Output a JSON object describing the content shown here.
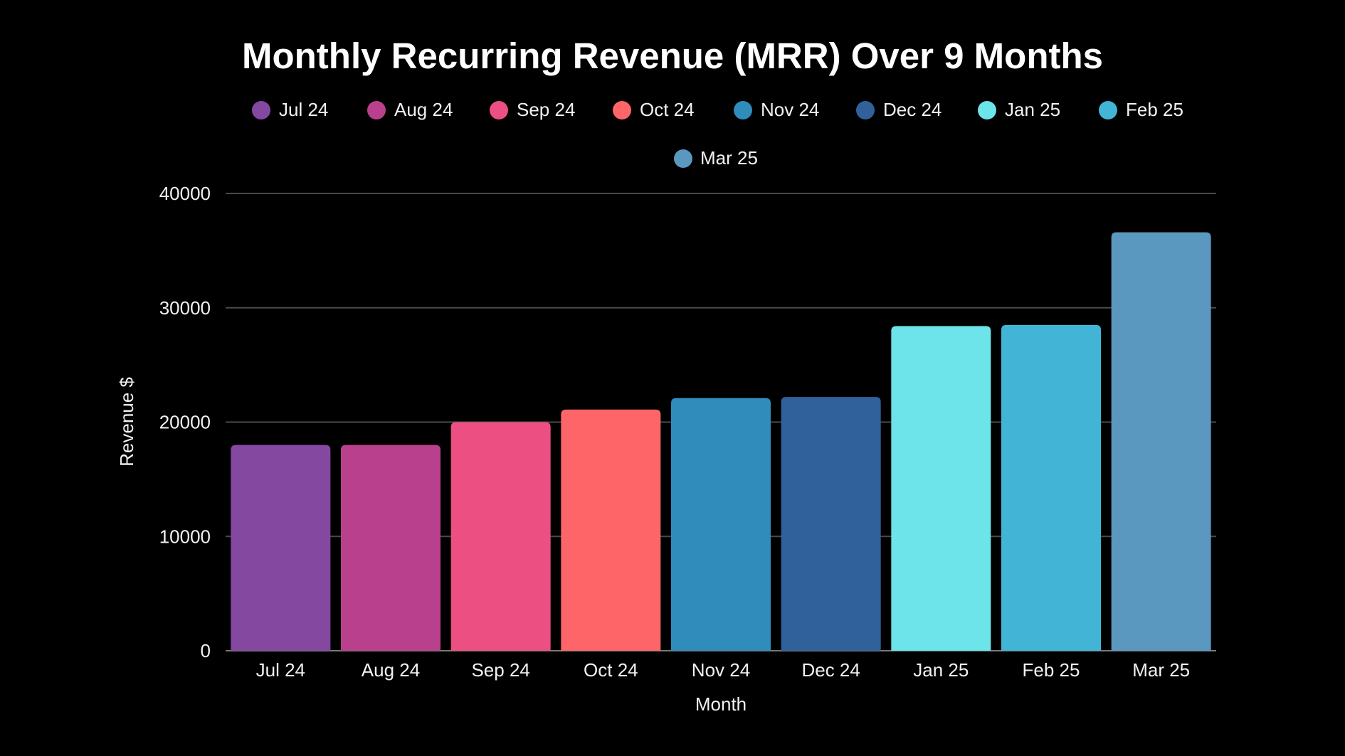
{
  "chart_data": {
    "type": "bar",
    "title": "Monthly Recurring Revenue (MRR) Over 9 Months",
    "xlabel": "Month",
    "ylabel": "Revenue $",
    "categories": [
      "Jul 24",
      "Aug 24",
      "Sep 24",
      "Oct 24",
      "Nov 24",
      "Dec 24",
      "Jan 25",
      "Feb 25",
      "Mar 25"
    ],
    "values": [
      18000,
      18000,
      20000,
      21100,
      22100,
      22200,
      28400,
      28500,
      36600
    ],
    "colors": [
      "#8548a0",
      "#b9408d",
      "#ec5082",
      "#fe6568",
      "#2f8cbb",
      "#30619b",
      "#6de4e9",
      "#42b5d7",
      "#5a98bf"
    ],
    "ylim": [
      0,
      40000
    ],
    "yticks": [
      0,
      10000,
      20000,
      30000,
      40000
    ],
    "grid": true,
    "legend_position": "top",
    "background": "#000000"
  }
}
